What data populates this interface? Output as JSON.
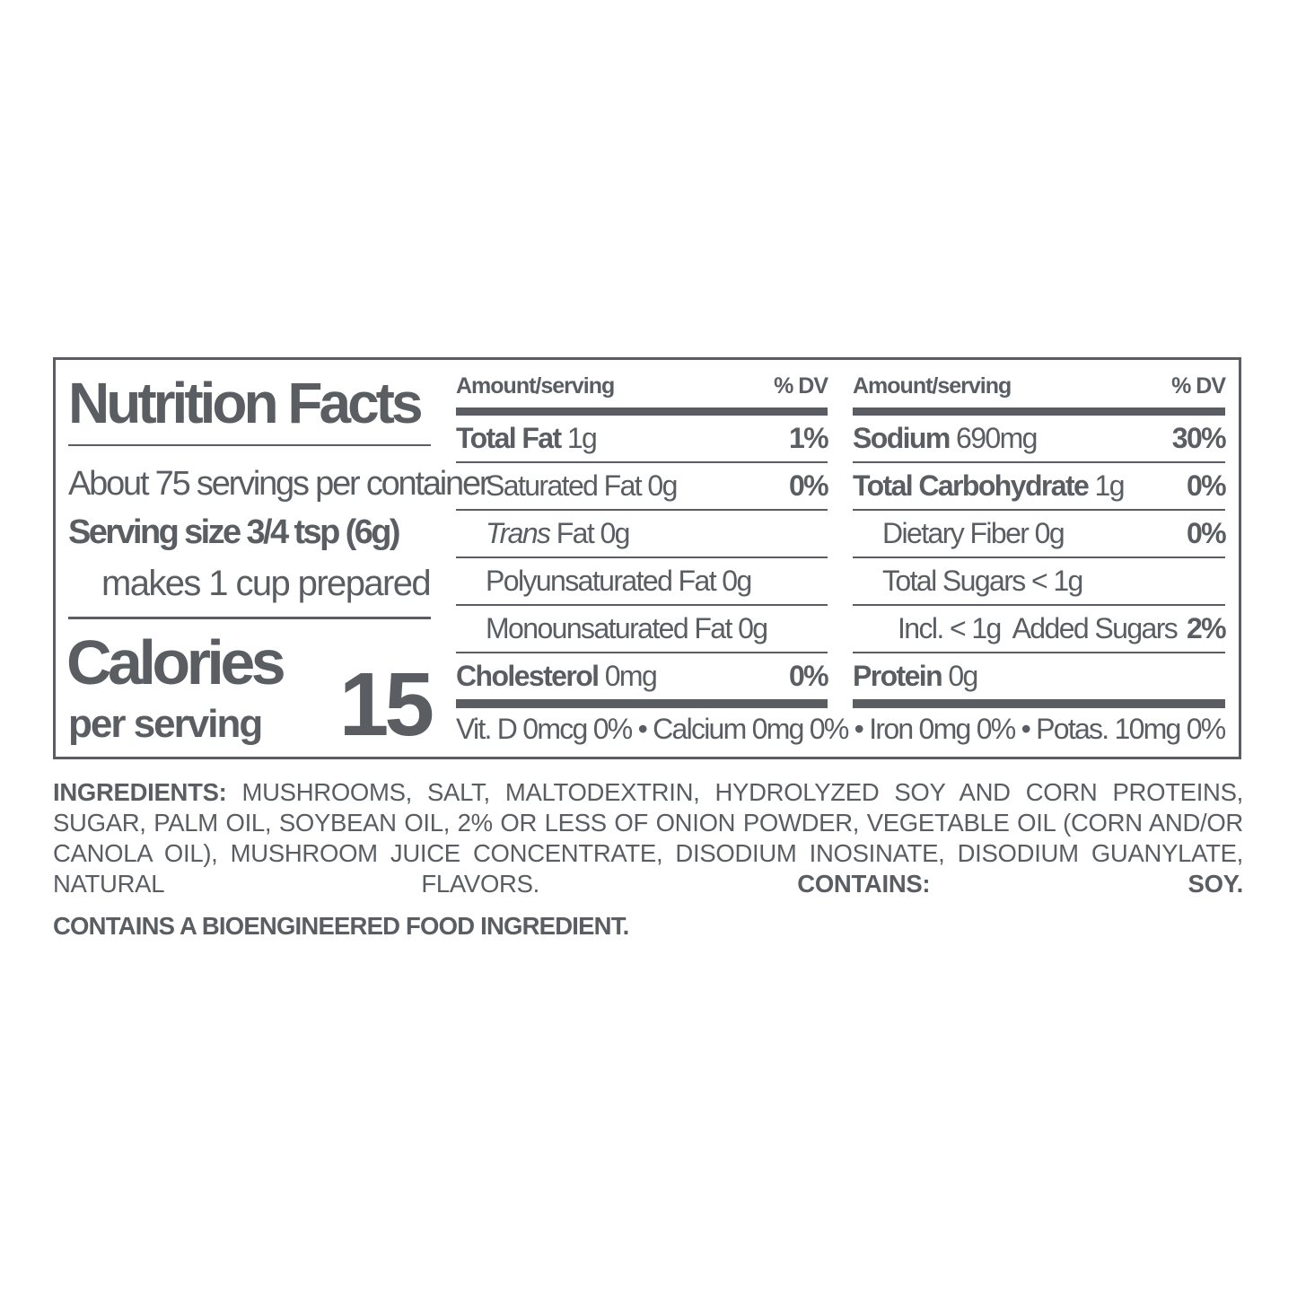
{
  "label": {
    "title": "Nutrition Facts",
    "servings": "About 75 servings per container",
    "serving_size": "Serving size 3/4 tsp (6g)",
    "prepared": "makes 1 cup prepared",
    "calories_label": "Calories",
    "per_serving": "per serving",
    "calories_value": "15",
    "header_amount": "Amount/serving",
    "header_dv": "% DV",
    "left_rows": [
      {
        "name": "Total Fat",
        "amount": "1g",
        "dv": "1%"
      },
      {
        "name": "Saturated Fat",
        "amount": "0g",
        "dv": "0%"
      },
      {
        "name": "Trans",
        "name_rest": "Fat",
        "amount": "0g",
        "dv": ""
      },
      {
        "name": "Polyunsaturated Fat",
        "amount": "0g",
        "dv": ""
      },
      {
        "name": "Monounsaturated Fat",
        "amount": "0g",
        "dv": ""
      },
      {
        "name": "Cholesterol",
        "amount": "0mg",
        "dv": "0%"
      }
    ],
    "right_rows": [
      {
        "name": "Sodium",
        "amount": "690mg",
        "dv": "30%"
      },
      {
        "name": "Total Carbohydrate",
        "amount": "1g",
        "dv": "0%"
      },
      {
        "name": "Dietary Fiber",
        "amount": "0g",
        "dv": "0%"
      },
      {
        "name": "Total Sugars",
        "amount": "< 1g",
        "dv": ""
      },
      {
        "name": "Incl. < 1g  Added Sugars",
        "amount": "",
        "dv": "2%"
      },
      {
        "name": "Protein",
        "amount": "0g",
        "dv": ""
      }
    ],
    "vitamins": "Vit. D 0mcg 0% • Calcium 0mg 0% • Iron 0mg 0% • Potas. 10mg 0%"
  },
  "ingredients": {
    "label": "INGREDIENTS:",
    "text": "MUSHROOMS, SALT, MALTODEXTRIN, HYDROLYZED SOY AND CORN PROTEINS, SUGAR, PALM OIL, SOYBEAN OIL, 2% OR LESS OF ONION POWDER, VEGETABLE OIL (CORN AND/OR CANOLA OIL), MUSHROOM JUICE CONCENTRATE, DISODIUM INOSINATE, DISODIUM GUANYLATE, NATURAL FLAVORS.",
    "contains": "CONTAINS: SOY.",
    "bioengineered": "CONTAINS A BIOENGINEERED FOOD INGREDIENT."
  },
  "colors": {
    "ink": "#5a5e63",
    "background": "#ffffff"
  }
}
